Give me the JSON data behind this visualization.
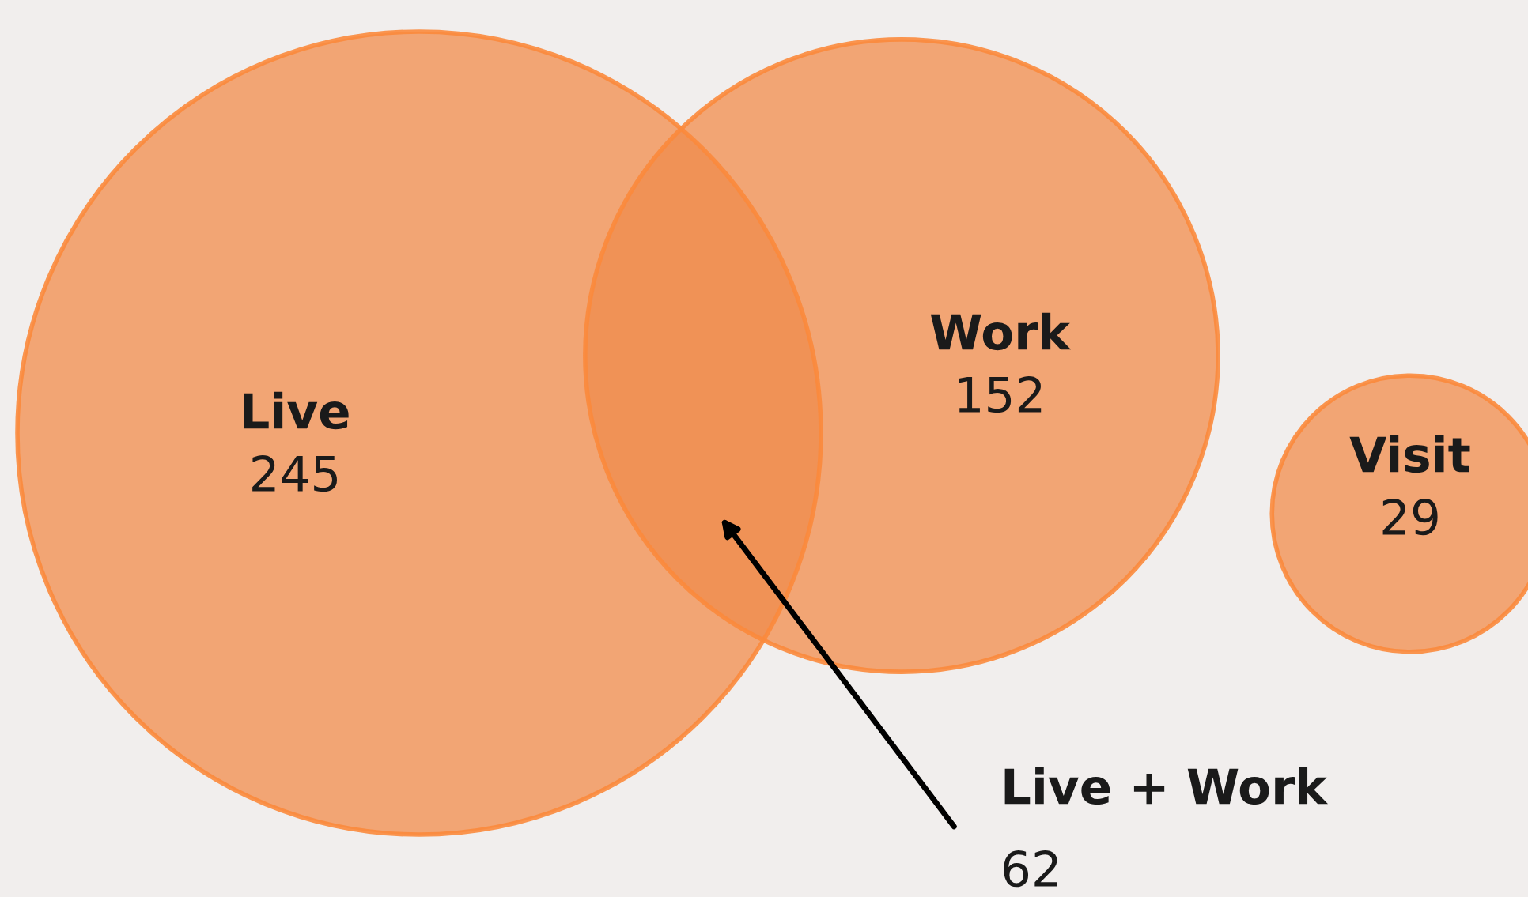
{
  "chart_data": {
    "type": "other",
    "categories": [
      "Live",
      "Work",
      "Visit",
      "Live + Work"
    ],
    "values": [
      245,
      152,
      29,
      62
    ],
    "colors": [
      "#f2a574",
      "#f2a574",
      "#f2a574",
      "#f09256"
    ],
    "data_labels": true
  }
}
